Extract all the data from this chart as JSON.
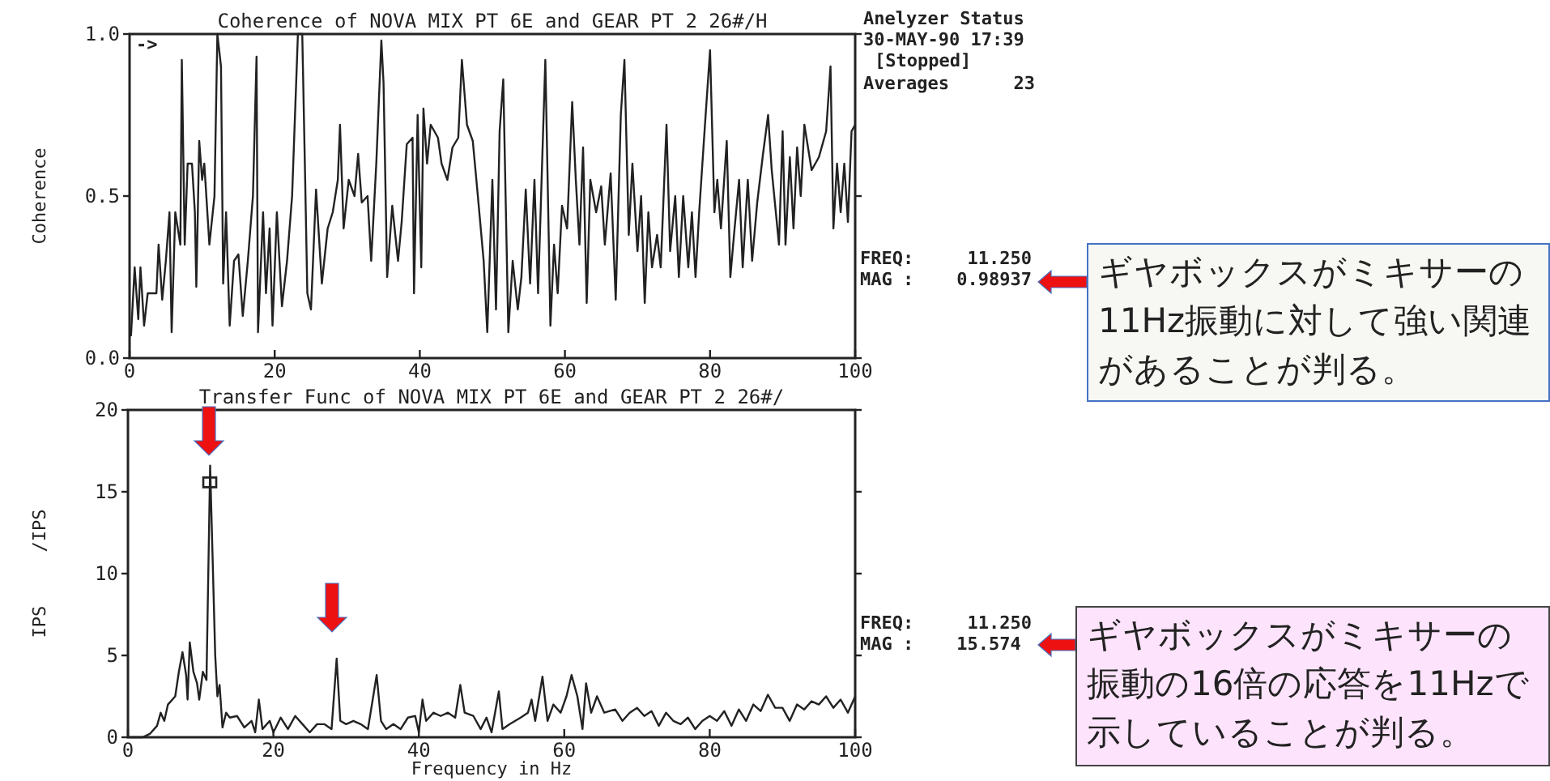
{
  "chart_data": [
    {
      "type": "line",
      "title": "Coherence of NOVA MIX PT 6E and GEAR PT 2 26#/H",
      "ylabel": "Coherence",
      "xlim": [
        0,
        100
      ],
      "xticks": [
        0,
        20,
        40,
        60,
        80,
        100
      ],
      "ylim": [
        0,
        1
      ],
      "yticks": [
        {
          "value": 0,
          "label": "0.0"
        },
        {
          "value": 0.5,
          "label": "0.5"
        },
        {
          "value": 1,
          "label": "1.0"
        }
      ],
      "grid": false,
      "annotations": [
        "->",
        "Anelyzer Status",
        "30-MAY-90 17:39",
        "[Stopped]",
        "Averages      23",
        "FREQ:     11.250",
        "MAG :    0.98937",
        "ギヤボックスがミキサーの11Hz振動に対して強い関連があることが判る。"
      ],
      "series": [
        {
          "color": "#222222",
          "x": [
            0.2,
            0.7,
            1.2,
            1.5,
            2,
            2.5,
            3,
            3.7,
            4,
            4.5,
            5,
            5.5,
            5.8,
            6.3,
            7,
            7.2,
            7.6,
            8,
            8.6,
            9,
            9.2,
            9.6,
            10,
            10.3,
            11,
            11.7,
            12.1,
            12.6,
            12.9,
            13.3,
            13.8,
            14.4,
            15,
            15.6,
            16.3,
            17,
            17.5,
            17.7,
            18.4,
            18.8,
            19.3,
            19.7,
            20.3,
            21,
            21.7,
            22.4,
            23.2,
            23.8,
            24.2,
            24.5,
            25,
            25.7,
            26.5,
            27.3,
            28,
            28.7,
            29,
            29.5,
            30.2,
            31,
            31.5,
            32,
            32.8,
            33.3,
            34,
            34.7,
            35,
            35.5,
            36.2,
            37,
            37.5,
            38.2,
            39,
            39.2,
            39.7,
            40.2,
            40.5,
            41,
            41.5,
            42.5,
            43,
            43.8,
            44.5,
            45.3,
            45.8,
            46.5,
            47.3,
            48,
            48.8,
            49.3,
            50,
            50.5,
            51,
            51.5,
            52.2,
            52.8,
            53.5,
            54,
            54.6,
            55.2,
            55.8,
            56.3,
            57.3,
            58,
            58.5,
            59,
            59.6,
            60.3,
            61,
            61.5,
            62,
            62.5,
            63,
            63.5,
            64.3,
            65,
            65.5,
            66.3,
            67,
            67.7,
            68.2,
            68.8,
            69.3,
            70,
            70.5,
            71,
            71.5,
            72,
            72.7,
            73.2,
            74,
            74.5,
            75.2,
            75.7,
            76.3,
            77,
            77.5,
            78,
            78.5,
            79.3,
            80,
            80.6,
            81,
            81.5,
            82.3,
            82.8,
            83.3,
            84,
            84.5,
            85.2,
            85.8,
            86.5,
            87.3,
            88,
            88.5,
            89.5,
            90,
            90.4,
            91,
            91.5,
            92,
            92.5,
            93,
            94,
            95,
            96,
            96.6,
            97,
            97.5,
            98,
            98.5,
            99,
            99.5,
            100
          ],
          "values": [
            0.07,
            0.28,
            0.12,
            0.28,
            0.1,
            0.2,
            0.2,
            0.2,
            0.35,
            0.18,
            0.3,
            0.45,
            0.08,
            0.45,
            0.35,
            0.92,
            0.35,
            0.6,
            0.6,
            0.45,
            0.22,
            0.67,
            0.55,
            0.6,
            0.35,
            0.5,
            1.0,
            0.9,
            0.23,
            0.45,
            0.1,
            0.3,
            0.32,
            0.13,
            0.3,
            0.5,
            0.93,
            0.08,
            0.45,
            0.2,
            0.4,
            0.1,
            0.45,
            0.16,
            0.3,
            0.5,
            1.0,
            1.0,
            0.55,
            0.2,
            0.15,
            0.52,
            0.23,
            0.4,
            0.45,
            0.55,
            0.72,
            0.4,
            0.55,
            0.5,
            0.63,
            0.48,
            0.5,
            0.3,
            0.6,
            0.98,
            0.85,
            0.25,
            0.47,
            0.3,
            0.42,
            0.66,
            0.68,
            0.2,
            0.75,
            0.28,
            0.77,
            0.6,
            0.72,
            0.68,
            0.6,
            0.55,
            0.65,
            0.68,
            0.92,
            0.72,
            0.67,
            0.5,
            0.3,
            0.08,
            0.55,
            0.15,
            0.7,
            0.86,
            0.08,
            0.3,
            0.15,
            0.25,
            0.52,
            0.23,
            0.55,
            0.2,
            0.92,
            0.1,
            0.35,
            0.2,
            0.47,
            0.4,
            0.79,
            0.55,
            0.35,
            0.65,
            0.17,
            0.55,
            0.45,
            0.53,
            0.35,
            0.57,
            0.18,
            0.75,
            0.92,
            0.38,
            0.6,
            0.33,
            0.5,
            0.17,
            0.45,
            0.28,
            0.38,
            0.28,
            0.72,
            0.33,
            0.5,
            0.25,
            0.5,
            0.28,
            0.45,
            0.25,
            0.45,
            0.72,
            0.95,
            0.45,
            0.55,
            0.4,
            0.67,
            0.25,
            0.38,
            0.55,
            0.28,
            0.55,
            0.3,
            0.48,
            0.63,
            0.75,
            0.58,
            0.35,
            0.7,
            0.35,
            0.62,
            0.4,
            0.65,
            0.5,
            0.72,
            0.58,
            0.62,
            0.7,
            0.9,
            0.4,
            0.6,
            0.45,
            0.6,
            0.42,
            0.7,
            0.72
          ]
        }
      ]
    },
    {
      "type": "line",
      "title": "Transfer Func of NOVA MIX PT 6E and GEAR PT 2 26#/",
      "xlabel": "Frequency in Hz",
      "ylabel": "IPS     /IPS",
      "xlim": [
        0,
        100
      ],
      "xticks": [
        0,
        20,
        40,
        60,
        80,
        100
      ],
      "ylim": [
        0,
        20
      ],
      "yticks": [
        0,
        5,
        10,
        15,
        20
      ],
      "grid": false,
      "annotations": [
        "FREQ:     11.250",
        "MAG :    15.574",
        "ギヤボックスがミキサーの振動の16倍の応答を11Hzで示していることが判る。"
      ],
      "series": [
        {
          "color": "#222222",
          "x": [
            0,
            2,
            3,
            4,
            4.5,
            5,
            5.5,
            6.5,
            7,
            7.5,
            8,
            8.2,
            8.5,
            9,
            9.5,
            9.8,
            10.3,
            10.8,
            11.3,
            12,
            12.3,
            12.6,
            13,
            13.5,
            14,
            15,
            16,
            17,
            17.5,
            18,
            18.5,
            19.5,
            20,
            21,
            22,
            23,
            24,
            25,
            26,
            27,
            28,
            28.7,
            29.2,
            30,
            31,
            32,
            33,
            34.2,
            34.8,
            35.5,
            36.5,
            37.5,
            38.5,
            39.5,
            40,
            40.5,
            41,
            42,
            43,
            44,
            45,
            45.7,
            46.3,
            47.5,
            48.5,
            49.3,
            50,
            51,
            51.5,
            52.5,
            54,
            55,
            55.5,
            56,
            57,
            57.7,
            58.5,
            59.5,
            60.3,
            61,
            61.8,
            62.5,
            63,
            63.7,
            64.5,
            65.5,
            67,
            68,
            69,
            70,
            71,
            72,
            73,
            74,
            75,
            76,
            77,
            78,
            79,
            80,
            81,
            82,
            83,
            84,
            85,
            86,
            87,
            88,
            89,
            90,
            91,
            92,
            93,
            94,
            95,
            96,
            97,
            98,
            99,
            100
          ],
          "values": [
            0,
            0,
            0.2,
            0.7,
            1.5,
            1.0,
            2.0,
            2.5,
            4.0,
            5.2,
            3.8,
            2.3,
            5.8,
            4.0,
            3.3,
            2.3,
            4.0,
            3.5,
            16.6,
            5.0,
            2.5,
            3.2,
            0.6,
            1.5,
            1.2,
            1.3,
            0.6,
            1.0,
            0.3,
            2.3,
            0.5,
            1.0,
            0.3,
            1.2,
            0.5,
            1.3,
            0.8,
            0.3,
            0.8,
            0.8,
            0.5,
            4.8,
            1.0,
            0.8,
            1.0,
            0.8,
            0.5,
            3.8,
            1.0,
            0.5,
            0.8,
            0.5,
            1.2,
            1.3,
            0.3,
            2.3,
            1.0,
            1.5,
            1.3,
            1.5,
            1.2,
            3.2,
            1.5,
            1.3,
            0.5,
            1.2,
            0.3,
            2.8,
            0.5,
            0.8,
            1.2,
            1.5,
            2.3,
            1.0,
            3.7,
            1.0,
            2.0,
            1.5,
            2.5,
            3.8,
            2.5,
            0.5,
            3.3,
            1.5,
            2.5,
            1.5,
            1.7,
            1.0,
            1.5,
            1.8,
            1.3,
            1.6,
            0.7,
            1.5,
            1.0,
            0.8,
            1.2,
            0.5,
            1.0,
            1.3,
            1.0,
            1.6,
            0.7,
            1.7,
            1.0,
            2.0,
            1.6,
            2.6,
            1.8,
            1.8,
            1.0,
            2.0,
            1.7,
            2.2,
            2.0,
            2.5,
            1.8,
            2.3,
            1.5,
            2.5
          ]
        },
        {
          "type": "scatter",
          "color": "#222222",
          "marker": "square",
          "x": [
            11.25
          ],
          "values": [
            15.574
          ]
        }
      ]
    }
  ]
}
